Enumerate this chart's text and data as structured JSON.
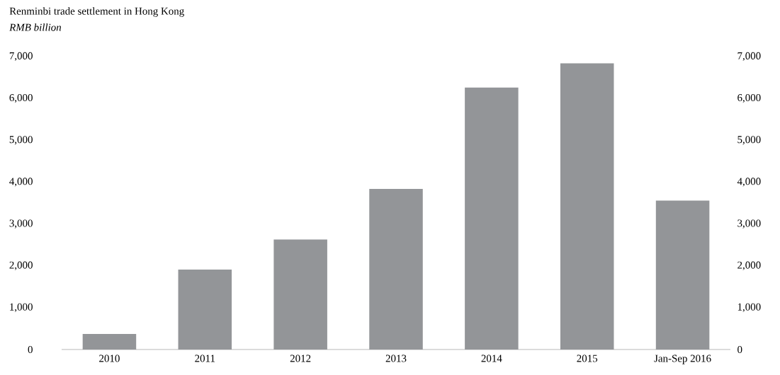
{
  "chart_data": {
    "type": "bar",
    "title": "Renminbi trade settlement in Hong Kong",
    "subtitle": "*RMB billion*",
    "categories": [
      "2010",
      "2011",
      "2012",
      "2013",
      "2014",
      "2015",
      "Jan-Sep 2016"
    ],
    "values": [
      370,
      1910,
      2630,
      3840,
      6260,
      6840,
      3560
    ],
    "color": "#939598",
    "ylim": [
      0,
      7000
    ],
    "yticks": [
      0,
      {
        "value": 1000,
        "label": "1,000"
      },
      {
        "value": 2000,
        "label": "2,000"
      },
      {
        "value": 3000,
        "label": "3,000"
      },
      {
        "value": 4000,
        "label": "4,000"
      },
      {
        "value": 5000,
        "label": "5,000"
      },
      {
        "value": 6000,
        "label": "6,000"
      },
      {
        "value": 7000,
        "label": "7,000"
      }
    ],
    "y2lim": [
      0,
      7000
    ],
    "y2ticks": [
      0,
      {
        "value": 1000,
        "label": "1,000"
      },
      {
        "value": 2000,
        "label": "2,000"
      },
      {
        "value": 3000,
        "label": "3,000"
      },
      {
        "value": 4000,
        "label": "4,000"
      },
      {
        "value": 5000,
        "label": "5,000"
      },
      {
        "value": 6000,
        "label": "6,000"
      },
      {
        "value": 7000,
        "label": "7,000"
      }
    ]
  }
}
